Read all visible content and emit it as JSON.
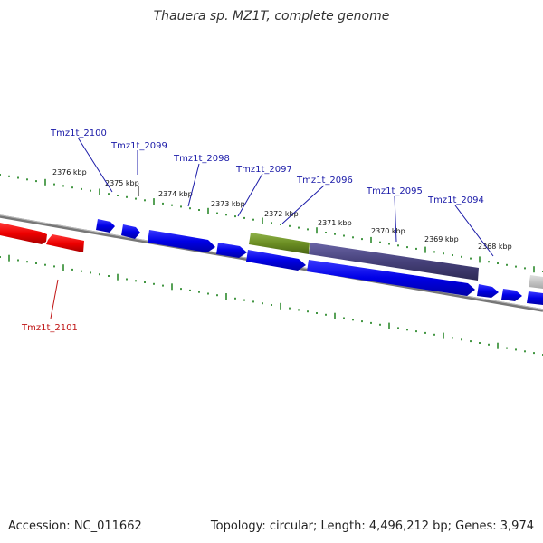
{
  "title": "Thauera sp. MZ1T, complete genome",
  "footer": {
    "accession": "Accession: NC_011662",
    "summary": "Topology: circular; Length: 4,496,212 bp; Genes: 3,974"
  },
  "colors": {
    "forward": "#0000ee",
    "reverse": "#ee0000",
    "olive": "#6b8e23",
    "slate": "#46417a",
    "tick": "#2e8b2e",
    "backbone": "#777777",
    "label_blue": "#1a1aa8",
    "label_red": "#c01515"
  },
  "scale_labels": [
    "2376 kbp",
    "2375 kbp",
    "2374 kbp",
    "2373 kbp",
    "2372 kbp",
    "2371 kbp",
    "2370 kbp",
    "2369 kbp",
    "2368 kbp"
  ],
  "gene_labels": [
    {
      "name": "Tmz1t_2100",
      "color": "blue"
    },
    {
      "name": "Tmz1t_2099",
      "color": "blue"
    },
    {
      "name": "Tmz1t_2098",
      "color": "blue"
    },
    {
      "name": "Tmz1t_2097",
      "color": "blue"
    },
    {
      "name": "Tmz1t_2096",
      "color": "blue"
    },
    {
      "name": "Tmz1t_2095",
      "color": "blue"
    },
    {
      "name": "Tmz1t_2094",
      "color": "blue"
    },
    {
      "name": "Tmz1t_2101",
      "color": "red"
    }
  ]
}
